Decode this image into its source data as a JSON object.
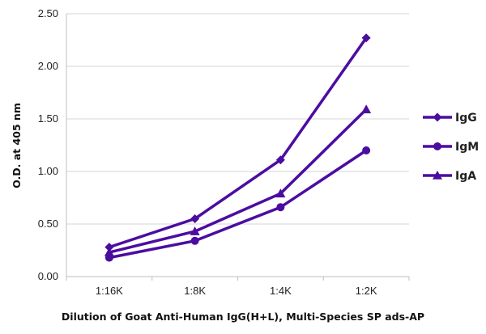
{
  "chart_data": {
    "type": "line",
    "title": "",
    "xlabel": "Dilution of Goat Anti-Human IgG(H+L), Multi-Species SP ads-AP",
    "ylabel": "O.D. at 405 nm",
    "categories": [
      "1:16K",
      "1:8K",
      "1:4K",
      "1:2K"
    ],
    "ylim": [
      0,
      2.5
    ],
    "yticks": [
      "0.00",
      "0.50",
      "1.00",
      "1.50",
      "2.00",
      "2.50"
    ],
    "grid": {
      "horizontal": true,
      "vertical": false
    },
    "legend_position": "right",
    "series": [
      {
        "name": "IgG",
        "marker": "diamond",
        "color": "#4B0DA0",
        "values": [
          0.28,
          0.55,
          1.11,
          2.27
        ]
      },
      {
        "name": "IgM",
        "marker": "circle",
        "color": "#4B0DA0",
        "values": [
          0.18,
          0.34,
          0.66,
          1.2
        ]
      },
      {
        "name": "IgA",
        "marker": "triangle",
        "color": "#4B0DA0",
        "values": [
          0.23,
          0.43,
          0.79,
          1.59
        ]
      }
    ]
  }
}
